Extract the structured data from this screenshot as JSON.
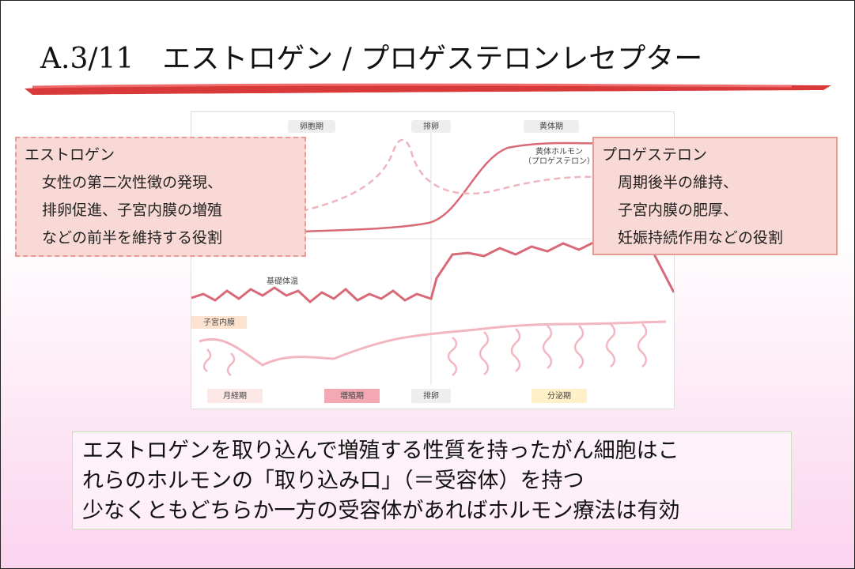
{
  "header": {
    "title": "A.3/11　エストロゲン / プロゲステロンレセプター"
  },
  "diagram": {
    "top_phases": [
      "卵胞期",
      "排卵",
      "黄体期"
    ],
    "hormone_label": [
      "黄体ホルモン",
      "（プロゲステロン）"
    ],
    "temperature_label": "基礎体温",
    "endometrium_label": "子宮内膜",
    "bottom_phases": [
      "月経期",
      "増殖期",
      "排卵",
      "分泌期"
    ]
  },
  "callouts": [
    {
      "title": "エストロゲン",
      "lines": [
        "女性の第二次性徴の発現、",
        "排卵促進、子宮内膜の増殖",
        "などの前半を維持する役割"
      ]
    },
    {
      "title": "プロゲステロン",
      "lines": [
        "周期後半の維持、",
        "子宮内膜の肥厚、",
        "妊娠持続作用などの役割"
      ]
    }
  ],
  "summary": {
    "lines": [
      "エストロゲンを取り込んで増殖する性質を持ったがん細胞はこ",
      "れらのホルモンの「取り込み口」（＝受容体）を持つ",
      "少なくともどちらか一方の受容体があればホルモン療法は有効"
    ]
  }
}
